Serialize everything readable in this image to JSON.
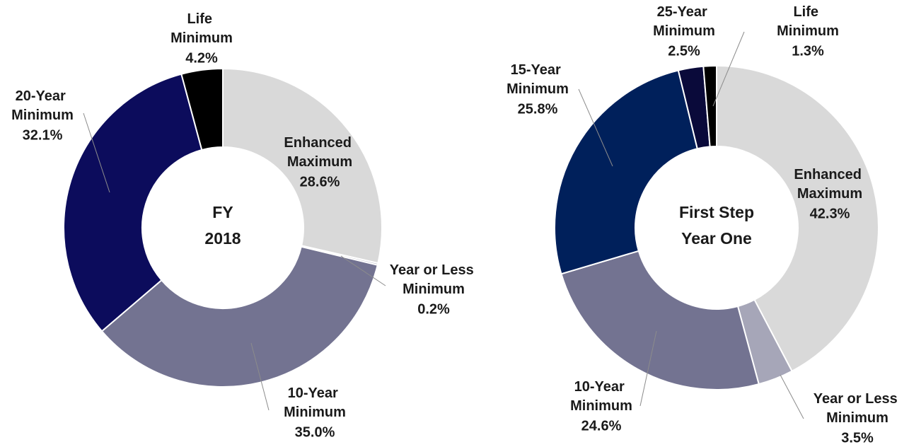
{
  "chart_data": [
    {
      "type": "pie",
      "donut": true,
      "title": [
        "FY",
        "2018"
      ],
      "categories": [
        "Enhanced Maximum",
        "Year or Less Minimum",
        "10-Year Minimum",
        "20-Year Minimum",
        "Life Minimum"
      ],
      "values": [
        28.6,
        0.2,
        35.0,
        32.1,
        4.2
      ],
      "value_labels": [
        "28.6%",
        "0.2%",
        "35.0%",
        "32.1%",
        "4.2%"
      ],
      "colors": [
        "#d9d9d9",
        "#c8c8d2",
        "#737391",
        "#0c0c5c",
        "#000000"
      ]
    },
    {
      "type": "pie",
      "donut": true,
      "title": [
        "First Step",
        "Year One"
      ],
      "categories": [
        "Enhanced Maximum",
        "Year or Less Minimum",
        "10-Year Minimum",
        "15-Year Minimum",
        "25-Year Minimum",
        "Life Minimum"
      ],
      "values": [
        42.3,
        3.5,
        24.6,
        25.8,
        2.5,
        1.3
      ],
      "value_labels": [
        "42.3%",
        "3.5%",
        "24.6%",
        "25.8%",
        "2.5%",
        "1.3%"
      ],
      "colors": [
        "#d9d9d9",
        "#a6a6b8",
        "#737391",
        "#00205b",
        "#0a0a3a",
        "#000000"
      ]
    }
  ]
}
